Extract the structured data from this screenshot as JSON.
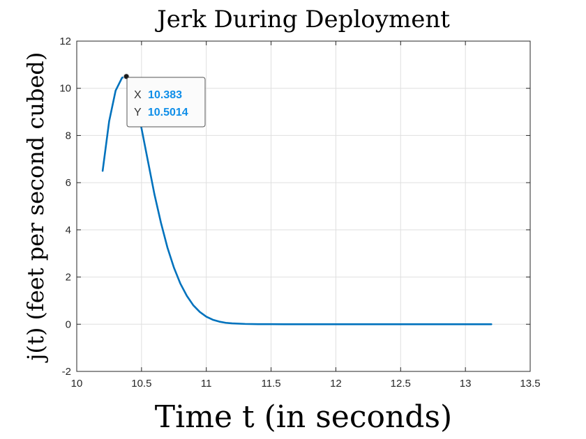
{
  "chart_data": {
    "type": "line",
    "title": "Jerk During Deployment",
    "xlabel": "Time t (in seconds)",
    "ylabel": "j(t) (feet per second cubed)",
    "xlim": [
      10,
      13.5
    ],
    "ylim": [
      -2,
      12
    ],
    "xticks": [
      "10",
      "10.5",
      "11",
      "11.5",
      "12",
      "12.5",
      "13",
      "13.5"
    ],
    "yticks": [
      "-2",
      "0",
      "2",
      "4",
      "6",
      "8",
      "10",
      "12"
    ],
    "grid": true,
    "series": [
      {
        "color": "#0072bd",
        "x": [
          10.2,
          10.25,
          10.3,
          10.35,
          10.383,
          10.42,
          10.45,
          10.5,
          10.55,
          10.6,
          10.65,
          10.7,
          10.75,
          10.8,
          10.85,
          10.9,
          10.95,
          11.0,
          11.05,
          11.1,
          11.15,
          11.2,
          11.3,
          11.4,
          11.5,
          11.6,
          11.8,
          12.0,
          12.5,
          13.0,
          13.2
        ],
        "y": [
          6.5,
          8.6,
          9.9,
          10.45,
          10.5014,
          10.2,
          9.6,
          8.3,
          6.9,
          5.5,
          4.3,
          3.25,
          2.4,
          1.72,
          1.2,
          0.8,
          0.52,
          0.32,
          0.19,
          0.11,
          0.06,
          0.035,
          0.012,
          0.004,
          0.0015,
          0.0005,
          0.0,
          0.0,
          0.0,
          0.0,
          0.0
        ]
      }
    ],
    "datatip": {
      "x_key": "X",
      "x_value": "10.383",
      "y_key": "Y",
      "y_value": "10.5014"
    }
  }
}
